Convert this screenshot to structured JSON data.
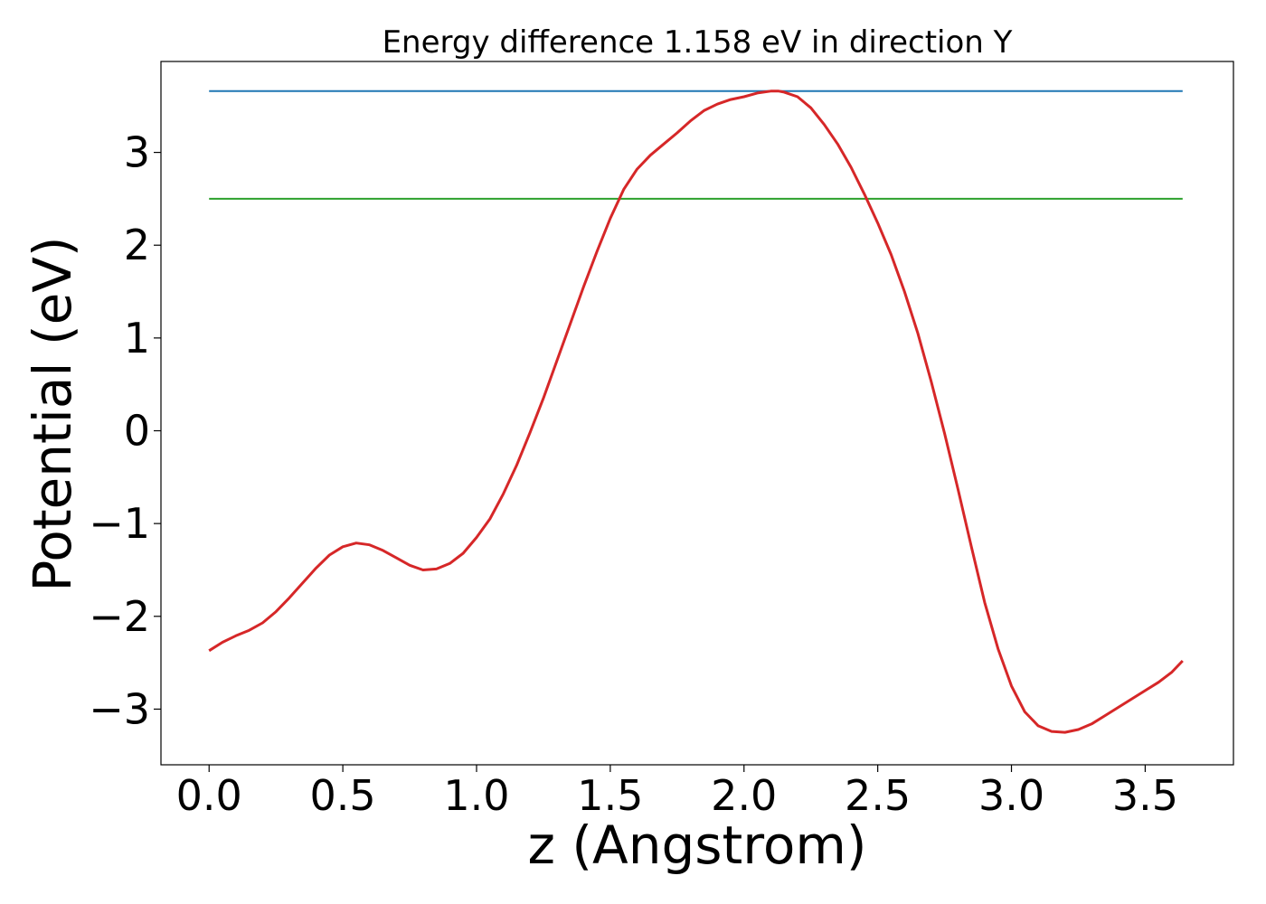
{
  "chart_data": {
    "type": "line",
    "title": "Energy difference 1.158 eV in direction Y",
    "xlabel": "z (Angstrom)",
    "ylabel": "Potential (eV)",
    "xlim": [
      -0.18,
      3.83
    ],
    "ylim": [
      -3.6,
      3.98
    ],
    "x_ticks": [
      0.0,
      0.5,
      1.0,
      1.5,
      2.0,
      2.5,
      3.0,
      3.5
    ],
    "x_tick_labels": [
      "0.0",
      "0.5",
      "1.0",
      "1.5",
      "2.0",
      "2.5",
      "3.0",
      "3.5"
    ],
    "y_ticks": [
      -3,
      -2,
      -1,
      0,
      1,
      2,
      3
    ],
    "y_tick_labels": [
      "−3",
      "−2",
      "−1",
      "0",
      "1",
      "2",
      "3"
    ],
    "grid": false,
    "series": [
      {
        "color": "#d62728",
        "x": [
          0.0,
          0.05,
          0.1,
          0.15,
          0.2,
          0.25,
          0.3,
          0.35,
          0.4,
          0.45,
          0.5,
          0.55,
          0.6,
          0.65,
          0.7,
          0.75,
          0.8,
          0.85,
          0.9,
          0.95,
          1.0,
          1.05,
          1.1,
          1.15,
          1.2,
          1.25,
          1.3,
          1.35,
          1.4,
          1.45,
          1.5,
          1.55,
          1.6,
          1.65,
          1.7,
          1.75,
          1.8,
          1.85,
          1.9,
          1.95,
          2.0,
          2.05,
          2.1,
          2.13,
          2.15,
          2.2,
          2.25,
          2.3,
          2.35,
          2.4,
          2.45,
          2.5,
          2.55,
          2.6,
          2.65,
          2.7,
          2.75,
          2.8,
          2.85,
          2.9,
          2.95,
          3.0,
          3.05,
          3.1,
          3.15,
          3.2,
          3.25,
          3.3,
          3.35,
          3.4,
          3.45,
          3.5,
          3.55,
          3.6,
          3.64
        ],
        "y": [
          -2.37,
          -2.28,
          -2.21,
          -2.15,
          -2.07,
          -1.95,
          -1.8,
          -1.64,
          -1.48,
          -1.34,
          -1.25,
          -1.21,
          -1.23,
          -1.29,
          -1.37,
          -1.45,
          -1.5,
          -1.49,
          -1.43,
          -1.32,
          -1.15,
          -0.95,
          -0.68,
          -0.37,
          -0.02,
          0.35,
          0.75,
          1.15,
          1.55,
          1.93,
          2.29,
          2.6,
          2.82,
          2.97,
          3.09,
          3.21,
          3.34,
          3.45,
          3.52,
          3.57,
          3.6,
          3.64,
          3.66,
          3.66,
          3.65,
          3.6,
          3.48,
          3.3,
          3.09,
          2.84,
          2.55,
          2.24,
          1.9,
          1.5,
          1.05,
          0.53,
          -0.03,
          -0.63,
          -1.25,
          -1.85,
          -2.35,
          -2.75,
          -3.03,
          -3.18,
          -3.24,
          -3.25,
          -3.22,
          -3.16,
          -3.07,
          -2.98,
          -2.89,
          -2.8,
          -2.71,
          -2.6,
          -2.48
        ]
      },
      {
        "color": "#1f77b4",
        "x": [
          0.0,
          3.64
        ],
        "y": [
          3.66,
          3.66
        ]
      },
      {
        "color": "#2ca02c",
        "x": [
          0.0,
          3.64
        ],
        "y": [
          2.5,
          2.5
        ]
      }
    ]
  }
}
